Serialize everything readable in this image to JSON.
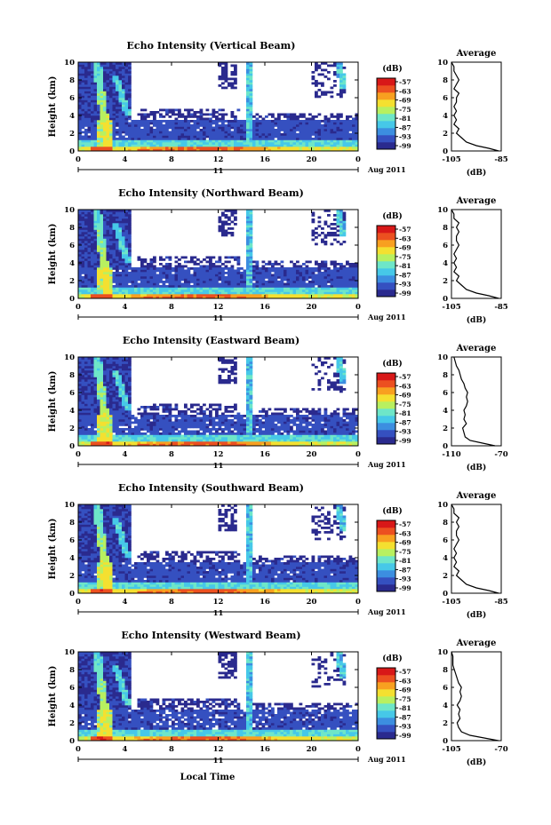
{
  "chart_data": {
    "type": "heatmap",
    "x_axis_label": "Local Time",
    "date_label": "Aug 2011",
    "date_marker": "11",
    "y_axis_label": "Height (km)",
    "x_ticks": [
      "0",
      "4",
      "8",
      "12",
      "16",
      "20",
      "0"
    ],
    "y_ticks": [
      "0",
      "2",
      "4",
      "6",
      "8",
      "10"
    ],
    "xlim": [
      0,
      24
    ],
    "ylim": [
      0,
      10
    ],
    "colorbar_title": "(dB)",
    "colorbar_ticks": [
      "-57",
      "-63",
      "-69",
      "-75",
      "-81",
      "-87",
      "-93",
      "-99"
    ],
    "colorscale": [
      "#2a2a8e",
      "#3550c0",
      "#3c8ee0",
      "#46c8e8",
      "#6ee6c8",
      "#b8f060",
      "#f4e030",
      "#f8a020",
      "#ec5020",
      "#d81818"
    ],
    "avg_title": "Average",
    "avg_unit": "(dB)",
    "panels": [
      {
        "title": "Echo Intensity (Vertical Beam)",
        "avg_xlim": [
          -105,
          -85
        ],
        "avg_xticks": [
          "-105",
          "-85"
        ],
        "avg_profile": {
          "height": [
            0,
            0.3,
            0.6,
            1.0,
            1.5,
            2.0,
            2.5,
            3.0,
            3.5,
            4.0,
            4.5,
            5.0,
            5.5,
            6.0,
            6.5,
            7.0,
            7.5,
            8.0,
            8.5,
            9.0,
            9.5,
            10.0
          ],
          "value": [
            -86,
            -90,
            -95,
            -99,
            -101,
            -103,
            -102,
            -104,
            -103,
            -104,
            -103,
            -104,
            -103,
            -103,
            -102,
            -104,
            -103,
            -102,
            -103,
            -104,
            -104,
            -105
          ]
        }
      },
      {
        "title": "Echo Intensity (Northward Beam)",
        "avg_xlim": [
          -105,
          -85
        ],
        "avg_xticks": [
          "-105",
          "-85"
        ],
        "avg_profile": {
          "height": [
            0,
            0.3,
            0.6,
            1.0,
            1.5,
            2.0,
            2.5,
            3.0,
            3.5,
            4.0,
            4.5,
            5.0,
            5.5,
            6.0,
            6.5,
            7.0,
            7.5,
            8.0,
            8.5,
            9.0,
            9.5,
            10.0
          ],
          "value": [
            -86,
            -90,
            -95,
            -99,
            -101,
            -103,
            -102,
            -104,
            -103,
            -104,
            -103,
            -104,
            -103,
            -102,
            -103,
            -103,
            -102,
            -103,
            -102,
            -104,
            -104,
            -105
          ]
        }
      },
      {
        "title": "Echo Intensity (Eastward Beam)",
        "avg_xlim": [
          -110,
          -70
        ],
        "avg_xticks": [
          "-110",
          "-70"
        ],
        "avg_profile": {
          "height": [
            0,
            0.3,
            0.6,
            1.0,
            1.5,
            2.0,
            2.5,
            3.0,
            3.5,
            4.0,
            4.5,
            5.0,
            5.5,
            6.0,
            6.5,
            7.0,
            7.5,
            8.0,
            8.5,
            9.0,
            9.5,
            10.0
          ],
          "value": [
            -75,
            -85,
            -95,
            -99,
            -100,
            -101,
            -98,
            -100,
            -99,
            -100,
            -98,
            -97,
            -98,
            -97,
            -99,
            -100,
            -102,
            -103,
            -104,
            -106,
            -107,
            -108
          ]
        }
      },
      {
        "title": "Echo Intensity (Southward Beam)",
        "avg_xlim": [
          -105,
          -85
        ],
        "avg_xticks": [
          "-105",
          "-85"
        ],
        "avg_profile": {
          "height": [
            0,
            0.3,
            0.6,
            1.0,
            1.5,
            2.0,
            2.5,
            3.0,
            3.5,
            4.0,
            4.5,
            5.0,
            5.5,
            6.0,
            6.5,
            7.0,
            7.5,
            8.0,
            8.5,
            9.0,
            9.5,
            10.0
          ],
          "value": [
            -86,
            -90,
            -95,
            -99,
            -101,
            -103,
            -102,
            -104,
            -103,
            -104,
            -103,
            -104,
            -103,
            -102,
            -103,
            -103,
            -102,
            -103,
            -102,
            -104,
            -104,
            -105
          ]
        }
      },
      {
        "title": "Echo Intensity (Westward Beam)",
        "avg_xlim": [
          -105,
          -70
        ],
        "avg_xticks": [
          "-105",
          "-70"
        ],
        "avg_profile": {
          "height": [
            0,
            0.3,
            0.6,
            1.0,
            1.5,
            2.0,
            2.5,
            3.0,
            3.5,
            4.0,
            4.5,
            5.0,
            5.5,
            6.0,
            6.5,
            7.0,
            7.5,
            8.0,
            8.5,
            9.0,
            9.5,
            10.0
          ],
          "value": [
            -72,
            -82,
            -92,
            -98,
            -100,
            -101,
            -99,
            -100,
            -99,
            -101,
            -99,
            -98,
            -99,
            -98,
            -100,
            -101,
            -102,
            -103,
            -104,
            -104,
            -104,
            -105
          ]
        }
      }
    ]
  }
}
